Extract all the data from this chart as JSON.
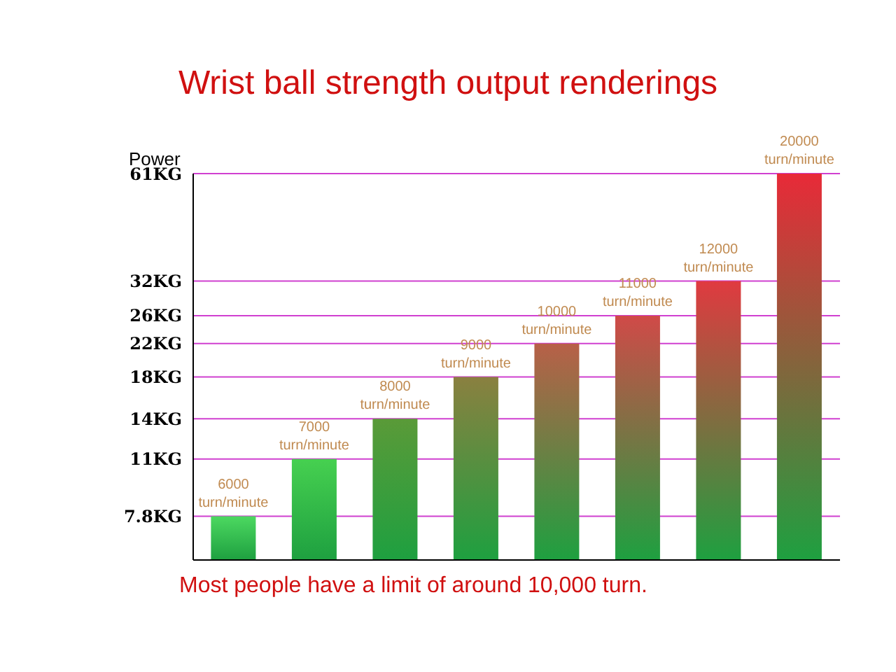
{
  "chart_data": {
    "type": "bar",
    "title": "Wrist ball strength output renderings",
    "ylabel": "Power",
    "categories": [
      null,
      null,
      null,
      null,
      null,
      null,
      null,
      null
    ],
    "values": [
      7.8,
      11,
      14,
      18,
      22,
      26,
      32,
      61
    ],
    "colors": [
      "#4cd860",
      "#46d050",
      "#5a9a38",
      "#8a8040",
      "#b86048",
      "#d04a48",
      "#e03a40",
      "#e82a38"
    ],
    "log": true,
    "ylim": [
      6,
      61
    ],
    "yticks": [
      {
        "value": 7.8,
        "label": "7.8KG"
      },
      {
        "value": 11,
        "label": "11KG"
      },
      {
        "value": 14,
        "label": "14KG"
      },
      {
        "value": 18,
        "label": "18KG"
      },
      {
        "value": 22,
        "label": "22KG"
      },
      {
        "value": 26,
        "label": "26KG"
      },
      {
        "value": 32,
        "label": "32KG"
      },
      {
        "value": 61,
        "label": "61KG"
      }
    ],
    "annotations": [
      {
        "text": "6000 turn/minute",
        "y": 7.8
      },
      {
        "text": "7000 turn/minute",
        "y": 11
      },
      {
        "text": "8000 turn/minute",
        "y": 14
      },
      {
        "text": "9000 turn/minute",
        "y": 18
      },
      {
        "text": "10000 turn/minute",
        "y": 22
      },
      {
        "text": "11000 turn/minute",
        "y": 26
      },
      {
        "text": "12000 turn/minute",
        "y": 32
      },
      {
        "text": "20000 turn/minute",
        "y": 61
      },
      "Most people have a limit of around 10,000 turn."
    ],
    "grid": "y"
  }
}
